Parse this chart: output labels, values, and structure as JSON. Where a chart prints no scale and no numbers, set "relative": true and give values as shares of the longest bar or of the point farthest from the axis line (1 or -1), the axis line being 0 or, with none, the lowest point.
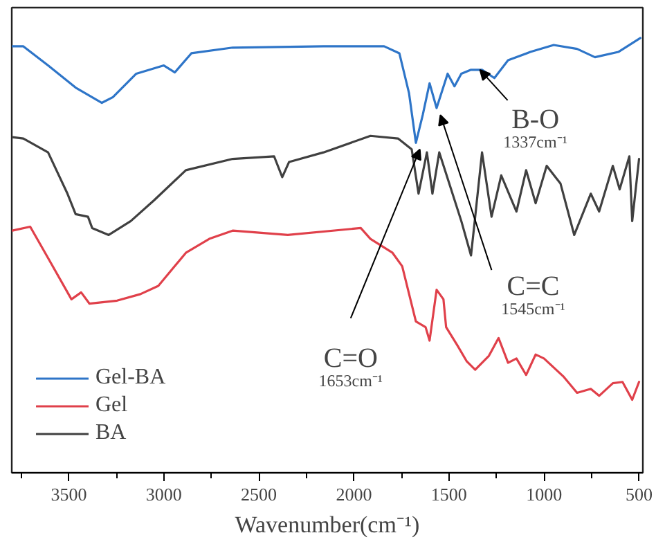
{
  "chart_data": {
    "type": "line",
    "relative": true,
    "xlabel": "Wavenumber(cm⁻¹)",
    "xlim": [
      3800,
      480
    ],
    "xticks": [
      {
        "value": 3750,
        "label": null
      },
      3500,
      {
        "value": 3250,
        "label": null
      },
      3000,
      {
        "value": 2750,
        "label": null
      },
      2500,
      {
        "value": 2250,
        "label": null
      },
      2000,
      {
        "value": 1750,
        "label": null
      },
      1500,
      {
        "value": 1250,
        "label": null
      },
      1000,
      {
        "value": 750,
        "label": null
      },
      500
    ],
    "grid": false,
    "legend": "bottom left",
    "marker": "none",
    "line_style": "solid",
    "series": [
      {
        "name": "Gel-BA",
        "color": "#2e75c8",
        "x": [
          3797,
          3739,
          3609,
          3464,
          3326,
          3268,
          3145,
          3000,
          2942,
          2855,
          2638,
          2160,
          1841,
          1761,
          1710,
          1674,
          1638,
          1602,
          1565,
          1507,
          1471,
          1435,
          1384,
          1326,
          1261,
          1189,
          1072,
          949,
          826,
          732,
          609,
          493
        ],
        "values": [
          0.981,
          0.981,
          0.937,
          0.886,
          0.851,
          0.864,
          0.918,
          0.937,
          0.921,
          0.965,
          0.978,
          0.981,
          0.981,
          0.965,
          0.873,
          0.759,
          0.823,
          0.896,
          0.839,
          0.918,
          0.889,
          0.918,
          0.927,
          0.927,
          0.908,
          0.949,
          0.968,
          0.984,
          0.975,
          0.956,
          0.968,
          1.0
        ]
      },
      {
        "name": "Gel",
        "color": "#e0404a",
        "x": [
          3797,
          3703,
          3609,
          3486,
          3435,
          3391,
          3246,
          3123,
          3029,
          2884,
          2761,
          2638,
          2348,
          1964,
          1913,
          1797,
          1746,
          1674,
          1623,
          1602,
          1565,
          1529,
          1515,
          1457,
          1406,
          1362,
          1290,
          1239,
          1189,
          1145,
          1094,
          1044,
          1000,
          899,
          826,
          754,
          710,
          638,
          587,
          536,
          500
        ],
        "values": [
          0.557,
          0.566,
          0.494,
          0.399,
          0.415,
          0.389,
          0.396,
          0.411,
          0.43,
          0.506,
          0.538,
          0.557,
          0.547,
          0.563,
          0.538,
          0.506,
          0.475,
          0.348,
          0.335,
          0.304,
          0.421,
          0.399,
          0.335,
          0.294,
          0.256,
          0.237,
          0.269,
          0.31,
          0.253,
          0.263,
          0.225,
          0.272,
          0.263,
          0.222,
          0.184,
          0.193,
          0.177,
          0.206,
          0.209,
          0.168,
          0.209
        ]
      },
      {
        "name": "BA",
        "color": "#404040",
        "x": [
          3797,
          3739,
          3609,
          3507,
          3464,
          3399,
          3377,
          3290,
          3174,
          3051,
          2884,
          2638,
          2420,
          2377,
          2341,
          2160,
          1913,
          1768,
          1696,
          1660,
          1616,
          1587,
          1551,
          1435,
          1384,
          1362,
          1326,
          1276,
          1225,
          1145,
          1094,
          1044,
          986,
          913,
          841,
          754,
          710,
          638,
          602,
          551,
          536,
          500
        ],
        "values": [
          0.772,
          0.769,
          0.737,
          0.642,
          0.595,
          0.589,
          0.563,
          0.547,
          0.579,
          0.627,
          0.696,
          0.722,
          0.728,
          0.68,
          0.715,
          0.737,
          0.775,
          0.769,
          0.744,
          0.642,
          0.737,
          0.642,
          0.737,
          0.579,
          0.5,
          0.589,
          0.737,
          0.589,
          0.684,
          0.601,
          0.696,
          0.62,
          0.706,
          0.665,
          0.547,
          0.642,
          0.601,
          0.706,
          0.652,
          0.728,
          0.579,
          0.722
        ]
      }
    ],
    "annotations": [
      {
        "text": "B-O\n1337cm⁻¹",
        "x": 1337,
        "y": 0.927
      },
      {
        "text": "C=C\n1545cm⁻¹",
        "x": 1545,
        "y": 0.823
      },
      {
        "text": "C=O\n1653cm⁻¹",
        "x": 1653,
        "y": 0.744
      }
    ]
  }
}
